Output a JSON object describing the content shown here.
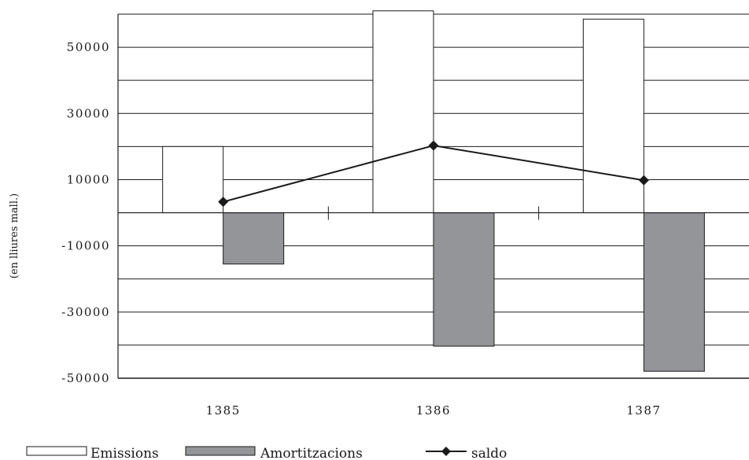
{
  "chart_data": {
    "type": "bar",
    "categories": [
      "1385",
      "1386",
      "1387"
    ],
    "series": [
      {
        "name": "Emissions",
        "kind": "bar",
        "values": [
          20000,
          61000,
          58500
        ],
        "color": "#ffffff"
      },
      {
        "name": "Amortitzacions",
        "kind": "bar",
        "values": [
          -15500,
          -40300,
          -47900
        ],
        "color": "#939598"
      },
      {
        "name": "saldo",
        "kind": "line",
        "marker": "diamond",
        "values": [
          3300,
          20300,
          9800
        ],
        "color": "#1a1a1a"
      }
    ],
    "ylabel": "(en lliures mall.)",
    "ylim": [
      -50000,
      60000
    ],
    "yticks": [
      50000,
      30000,
      10000,
      -10000,
      -30000,
      -50000
    ],
    "ytick_labels": [
      "50000",
      "30000",
      "10000",
      "-10000",
      "-30000",
      "-50000"
    ],
    "grid": true,
    "legend_position": "bottom-left"
  }
}
